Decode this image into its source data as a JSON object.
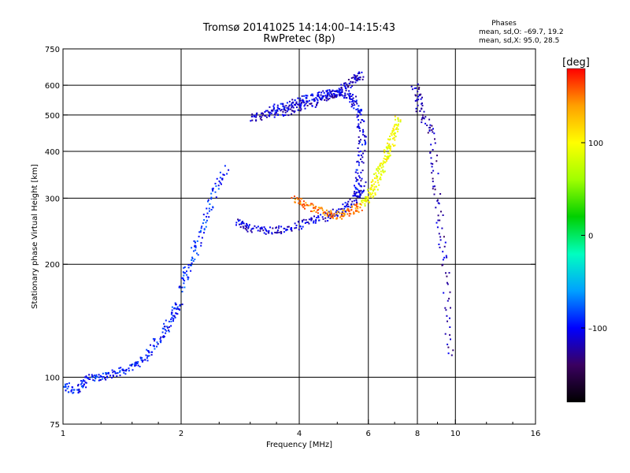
{
  "chart_data": {
    "type": "scatter",
    "title": "Tromsø 20141025 14:14:00–14:15:43",
    "subtitle": "RwPretec (8p)",
    "xlabel": "Frequency [MHz]",
    "ylabel": "Stationary phase Virtual Height [km]",
    "x_scale": "log",
    "y_scale": "log",
    "xlim": [
      1,
      16
    ],
    "ylim": [
      75,
      750
    ],
    "x_ticks": [
      1,
      2,
      4,
      6,
      8,
      10,
      16
    ],
    "x_tick_labels": [
      "1",
      "2",
      "4",
      "6",
      "8",
      "10",
      "16"
    ],
    "y_ticks": [
      75,
      100,
      200,
      300,
      400,
      500,
      600,
      750
    ],
    "y_tick_labels": [
      "75",
      "100",
      "200",
      "300",
      "400",
      "500",
      "600",
      "750"
    ],
    "grid": true,
    "phases_header": "Phases",
    "phases_stats": [
      "mean, sd,O: –69.7, 19.2",
      "mean, sd,X:  95.0, 28.5"
    ],
    "colorbar": {
      "title": "[deg]",
      "range": [
        -180,
        180
      ],
      "ticks": [
        100,
        0,
        -100
      ],
      "tick_labels": [
        "100",
        "0",
        "–100"
      ],
      "colors": [
        "#000000",
        "#3a0060",
        "#0000ff",
        "#00a0ff",
        "#00ffc0",
        "#00d000",
        "#a0ff00",
        "#ffff00",
        "#ffa000",
        "#ff0000"
      ]
    },
    "traces": [
      {
        "phase": -95,
        "f": [
          1.0,
          1.08,
          1.15,
          1.25,
          1.38,
          1.52,
          1.65,
          1.78,
          1.9,
          1.98
        ],
        "h": [
          95,
          92,
          99,
          100,
          103,
          107,
          115,
          130,
          145,
          160
        ]
      },
      {
        "phase": -90,
        "f": [
          2.0,
          2.1,
          2.25,
          2.4,
          2.6
        ],
        "h": [
          170,
          200,
          240,
          300,
          360
        ]
      },
      {
        "phase": -110,
        "f": [
          2.8,
          3.0,
          3.3,
          3.7,
          4.2,
          4.7,
          5.2,
          5.6,
          5.8
        ],
        "h": [
          260,
          250,
          245,
          248,
          258,
          268,
          280,
          300,
          330
        ]
      },
      {
        "phase": -105,
        "f": [
          5.6,
          5.7,
          5.8,
          5.7,
          5.5,
          5.2,
          4.8,
          4.4,
          4.0,
          3.7,
          3.4
        ],
        "h": [
          300,
          360,
          430,
          500,
          550,
          570,
          570,
          560,
          545,
          530,
          520
        ]
      },
      {
        "phase": -115,
        "f": [
          3.0,
          3.3,
          3.6,
          4.0,
          4.4,
          4.8,
          5.2,
          5.5,
          5.8
        ],
        "h": [
          490,
          500,
          505,
          520,
          540,
          560,
          590,
          620,
          640
        ]
      },
      {
        "phase": 95,
        "f": [
          5.8,
          6.0,
          6.2,
          6.4,
          6.6,
          6.8,
          7.0,
          7.2
        ],
        "h": [
          290,
          300,
          320,
          350,
          380,
          410,
          450,
          490
        ]
      },
      {
        "phase": 150,
        "f": [
          3.9,
          4.2,
          4.6,
          5.0,
          5.4,
          5.7
        ],
        "h": [
          300,
          285,
          275,
          270,
          275,
          285
        ]
      },
      {
        "phase": -120,
        "f": [
          7.9,
          8.1,
          8.7,
          9.0,
          9.4,
          9.7
        ],
        "h": [
          600,
          520,
          450,
          300,
          200,
          110
        ]
      }
    ]
  }
}
